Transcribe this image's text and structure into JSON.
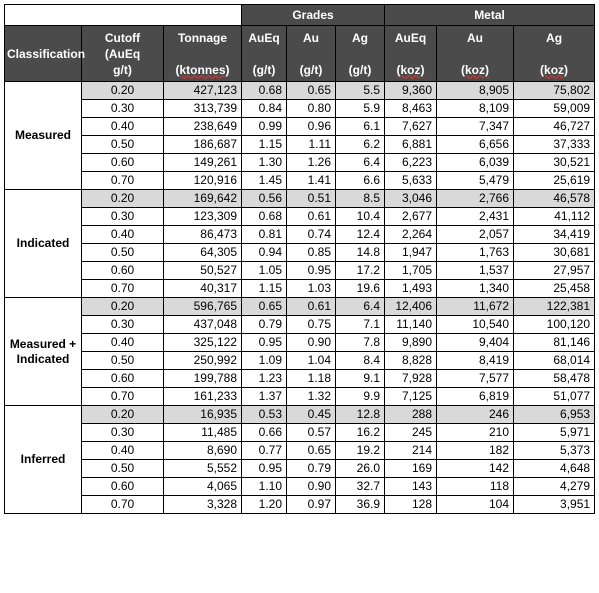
{
  "headers": {
    "grades": "Grades",
    "metal": "Metal",
    "classification": "Classification",
    "cutoff_lines": [
      "Cutoff",
      "(AuEq",
      "g/t)"
    ],
    "tonnage": "Tonnage",
    "tonnage_unit": "(ktonnes)",
    "grade_cols": [
      {
        "name": "AuEq",
        "unit": "(g/t)"
      },
      {
        "name": "Au",
        "unit": "(g/t)"
      },
      {
        "name": "Ag",
        "unit": "(g/t)"
      }
    ],
    "metal_cols": [
      {
        "name": "AuEq",
        "unit": "(koz)"
      },
      {
        "name": "Au",
        "unit": "(koz)"
      },
      {
        "name": "Ag",
        "unit": "(koz)"
      }
    ]
  },
  "groups": [
    {
      "label": "Measured",
      "rows": [
        [
          "0.20",
          "427,123",
          "0.68",
          "0.65",
          "5.5",
          "9,360",
          "8,905",
          "75,802"
        ],
        [
          "0.30",
          "313,739",
          "0.84",
          "0.80",
          "5.9",
          "8,463",
          "8,109",
          "59,009"
        ],
        [
          "0.40",
          "238,649",
          "0.99",
          "0.96",
          "6.1",
          "7,627",
          "7,347",
          "46,727"
        ],
        [
          "0.50",
          "186,687",
          "1.15",
          "1.11",
          "6.2",
          "6,881",
          "6,656",
          "37,333"
        ],
        [
          "0.60",
          "149,261",
          "1.30",
          "1.26",
          "6.4",
          "6,223",
          "6,039",
          "30,521"
        ],
        [
          "0.70",
          "120,916",
          "1.45",
          "1.41",
          "6.6",
          "5,633",
          "5,479",
          "25,619"
        ]
      ]
    },
    {
      "label": "Indicated",
      "rows": [
        [
          "0.20",
          "169,642",
          "0.56",
          "0.51",
          "8.5",
          "3,046",
          "2,766",
          "46,578"
        ],
        [
          "0.30",
          "123,309",
          "0.68",
          "0.61",
          "10.4",
          "2,677",
          "2,431",
          "41,112"
        ],
        [
          "0.40",
          "86,473",
          "0.81",
          "0.74",
          "12.4",
          "2,264",
          "2,057",
          "34,419"
        ],
        [
          "0.50",
          "64,305",
          "0.94",
          "0.85",
          "14.8",
          "1,947",
          "1,763",
          "30,681"
        ],
        [
          "0.60",
          "50,527",
          "1.05",
          "0.95",
          "17.2",
          "1,705",
          "1,537",
          "27,957"
        ],
        [
          "0.70",
          "40,317",
          "1.15",
          "1.03",
          "19.6",
          "1,493",
          "1,340",
          "25,458"
        ]
      ]
    },
    {
      "label": "Measured + Indicated",
      "rows": [
        [
          "0.20",
          "596,765",
          "0.65",
          "0.61",
          "6.4",
          "12,406",
          "11,672",
          "122,381"
        ],
        [
          "0.30",
          "437,048",
          "0.79",
          "0.75",
          "7.1",
          "11,140",
          "10,540",
          "100,120"
        ],
        [
          "0.40",
          "325,122",
          "0.95",
          "0.90",
          "7.8",
          "9,890",
          "9,404",
          "81,146"
        ],
        [
          "0.50",
          "250,992",
          "1.09",
          "1.04",
          "8.4",
          "8,828",
          "8,419",
          "68,014"
        ],
        [
          "0.60",
          "199,788",
          "1.23",
          "1.18",
          "9.1",
          "7,928",
          "7,577",
          "58,478"
        ],
        [
          "0.70",
          "161,233",
          "1.37",
          "1.32",
          "9.9",
          "7,125",
          "6,819",
          "51,077"
        ]
      ]
    },
    {
      "label": "Inferred",
      "rows": [
        [
          "0.20",
          "16,935",
          "0.53",
          "0.45",
          "12.8",
          "288",
          "246",
          "6,953"
        ],
        [
          "0.30",
          "11,485",
          "0.66",
          "0.57",
          "16.2",
          "245",
          "210",
          "5,971"
        ],
        [
          "0.40",
          "8,690",
          "0.77",
          "0.65",
          "19.2",
          "214",
          "182",
          "5,373"
        ],
        [
          "0.50",
          "5,552",
          "0.95",
          "0.79",
          "26.0",
          "169",
          "142",
          "4,648"
        ],
        [
          "0.60",
          "4,065",
          "1.10",
          "0.90",
          "32.7",
          "143",
          "118",
          "4,279"
        ],
        [
          "0.70",
          "3,328",
          "1.20",
          "0.97",
          "36.9",
          "128",
          "104",
          "3,951"
        ]
      ]
    }
  ],
  "colors": {
    "header_bg": "#4b4b4b",
    "highlight_row": "#d9d9d9"
  }
}
